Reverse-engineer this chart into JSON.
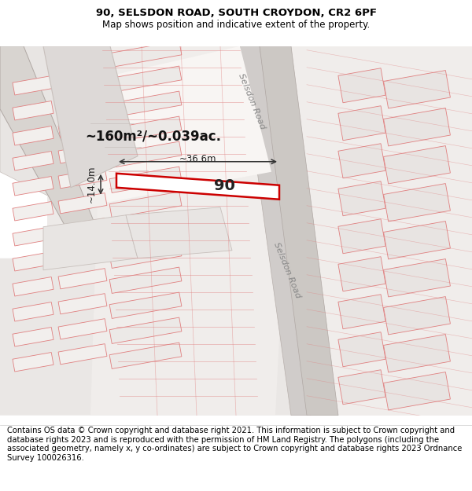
{
  "title_line1": "90, SELSDON ROAD, SOUTH CROYDON, CR2 6PF",
  "title_line2": "Map shows position and indicative extent of the property.",
  "footer_text": "Contains OS data © Crown copyright and database right 2021. This information is subject to Crown copyright and database rights 2023 and is reproduced with the permission of HM Land Registry. The polygons (including the associated geometry, namely x, y co-ordinates) are subject to Crown copyright and database rights 2023 Ordnance Survey 100026316.",
  "map_bg": "#f5f3f2",
  "parcel_fill_light": "#e8e8e8",
  "parcel_fill_white": "#ffffff",
  "parcel_edge": "#e08080",
  "parcel_edge_gray": "#c8c0bc",
  "road_fill": "#d8d4d0",
  "road_edge": "#b0a8a4",
  "plot_fill": "#ffffff",
  "plot_edge": "#cc0000",
  "dim_color": "#222222",
  "road_label_color": "#888888",
  "area_text": "~160m²/~0.039ac.",
  "property_label": "90",
  "dim_width": "~36.6m",
  "dim_height": "~14.0m",
  "title_fontsize": 9.5,
  "subtitle_fontsize": 8.5,
  "footer_fontsize": 7.2
}
